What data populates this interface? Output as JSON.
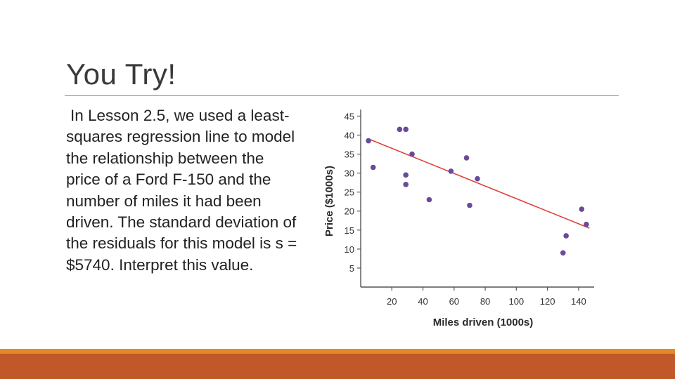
{
  "slide": {
    "title": "You Try!",
    "body": "In Lesson 2.5, we used a least-squares regression line to model the relationship  between the price of a Ford F-150 and the number of miles it had been driven. The standard deviation of the residuals for this model is s = $5740. Interpret this value."
  },
  "colors": {
    "accent_orange": "#e2892a",
    "accent_rust": "#c0582a",
    "point_color": "#6a4a9a",
    "line_color": "#e0403a"
  },
  "chart_data": {
    "type": "scatter",
    "xlabel": "Miles driven (1000s)",
    "ylabel": "Price ($1000s)",
    "xlim": [
      0,
      150
    ],
    "ylim": [
      0,
      46
    ],
    "x_ticks": [
      20,
      40,
      60,
      80,
      100,
      120,
      140
    ],
    "y_ticks": [
      5,
      10,
      15,
      20,
      25,
      30,
      35,
      40,
      45
    ],
    "grid": false,
    "points": [
      {
        "x": 5,
        "y": 38.5
      },
      {
        "x": 8,
        "y": 31.5
      },
      {
        "x": 25,
        "y": 41.5
      },
      {
        "x": 29,
        "y": 41.5
      },
      {
        "x": 29,
        "y": 29.5
      },
      {
        "x": 29,
        "y": 27
      },
      {
        "x": 33,
        "y": 35
      },
      {
        "x": 44,
        "y": 23
      },
      {
        "x": 58,
        "y": 30.5
      },
      {
        "x": 68,
        "y": 34
      },
      {
        "x": 70,
        "y": 21.5
      },
      {
        "x": 75,
        "y": 28.5
      },
      {
        "x": 130,
        "y": 9
      },
      {
        "x": 132,
        "y": 13.5
      },
      {
        "x": 142,
        "y": 20.5
      },
      {
        "x": 145,
        "y": 16.5
      }
    ],
    "regression_line": {
      "x": [
        5,
        147
      ],
      "y": [
        39,
        15.5
      ]
    }
  }
}
